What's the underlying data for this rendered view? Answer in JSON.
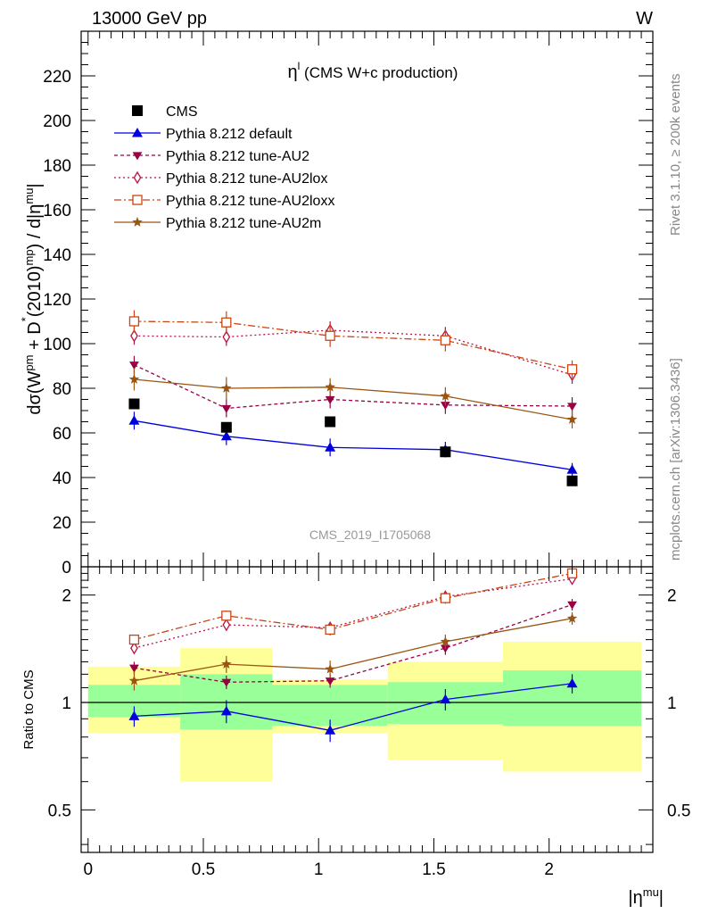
{
  "header": {
    "left": "13000 GeV pp",
    "right": "W"
  },
  "side_labels": {
    "rivet": "Rivet 3.1.10, ≥ 200k events",
    "mcplots": "mcplots.cern.ch [arXiv:1306.3436]"
  },
  "watermark": "CMS_2019_I1705068",
  "chart_data": {
    "type": "line",
    "title_main": "η",
    "title_sup": "l",
    "title_rest": " (CMS W+c production)",
    "ylabel": "dσ(W^pm + D^*(2010)^mp) / d|η^mu|",
    "ratio_ylabel": "Ratio to CMS",
    "xlabel": "|η^mu|",
    "xlim": [
      -0.03,
      2.45
    ],
    "ylim": [
      0,
      240
    ],
    "ratio_ylim": [
      0.38,
      2.4
    ],
    "ratio_scale": "log",
    "x_ticks": [
      "0",
      "0.5",
      "1",
      "1.5",
      "2"
    ],
    "y_ticks": [
      "0",
      "20",
      "40",
      "60",
      "80",
      "100",
      "120",
      "140",
      "160",
      "180",
      "200",
      "220"
    ],
    "ratio_ticks": [
      "0.5",
      "1",
      "2"
    ],
    "legend_position": "top-left",
    "data": {
      "name": "CMS",
      "x": [
        0.2,
        0.6,
        1.05,
        1.55,
        2.1
      ],
      "y": [
        73,
        62.5,
        65,
        51.5,
        38.5
      ],
      "bins": [
        [
          0,
          0.4
        ],
        [
          0.4,
          0.8
        ],
        [
          0.8,
          1.3
        ],
        [
          1.3,
          1.8
        ],
        [
          1.8,
          2.4
        ]
      ],
      "band_inner": [
        [
          0.91,
          1.12
        ],
        [
          0.84,
          1.2
        ],
        [
          0.86,
          1.12
        ],
        [
          0.87,
          1.14
        ],
        [
          0.86,
          1.23
        ]
      ],
      "band_outer": [
        [
          0.82,
          1.26
        ],
        [
          0.6,
          1.42
        ],
        [
          0.82,
          1.16
        ],
        [
          0.69,
          1.3
        ],
        [
          0.64,
          1.48
        ]
      ]
    },
    "series": [
      {
        "name": "Pythia 8.212 default",
        "color": "#0000dd",
        "marker": "triangle-up",
        "dash": "solid",
        "y": [
          65.5,
          58.5,
          53.5,
          52.5,
          43.5
        ],
        "err": [
          4,
          4,
          4,
          3.5,
          3
        ],
        "ratio": [
          0.915,
          0.945,
          0.835,
          1.02,
          1.13
        ],
        "ratio_err": [
          0.06,
          0.07,
          0.06,
          0.07,
          0.07
        ]
      },
      {
        "name": "Pythia 8.212 tune-AU2",
        "color": "#990044",
        "marker": "triangle-down",
        "dash": "4,3",
        "y": [
          90.5,
          71,
          75,
          72.5,
          72
        ],
        "err": [
          4,
          4,
          4,
          4,
          4
        ],
        "ratio": [
          1.25,
          1.14,
          1.15,
          1.42,
          1.88
        ],
        "ratio_err": [
          0.05,
          0.05,
          0.05,
          0.06,
          0.07
        ]
      },
      {
        "name": "Pythia 8.212 tune-AU2lox",
        "color": "#bb1144",
        "marker": "diamond-open",
        "dash": "2,3",
        "y": [
          103.5,
          103,
          106,
          103.5,
          86
        ],
        "err": [
          4,
          4,
          4,
          4,
          4
        ],
        "ratio": [
          1.42,
          1.65,
          1.62,
          1.98,
          2.22
        ],
        "ratio_err": [
          0.05,
          0.06,
          0.06,
          0.07,
          0.07
        ]
      },
      {
        "name": "Pythia 8.212 tune-AU2loxx",
        "color": "#cc4411",
        "marker": "square-open",
        "dash": "8,3,2,3",
        "y": [
          110,
          109.5,
          103.5,
          101.5,
          88.5
        ],
        "err": [
          5,
          5,
          5,
          5,
          4
        ],
        "ratio": [
          1.5,
          1.75,
          1.6,
          1.96,
          2.3
        ],
        "ratio_err": [
          0.05,
          0.06,
          0.06,
          0.07,
          0.07
        ]
      },
      {
        "name": "Pythia 8.212 tune-AU2m",
        "color": "#995511",
        "marker": "star",
        "dash": "solid",
        "y": [
          84,
          80,
          80.5,
          76.5,
          66
        ],
        "err": [
          5,
          5,
          4,
          4,
          4
        ],
        "ratio": [
          1.15,
          1.28,
          1.24,
          1.48,
          1.72
        ],
        "ratio_err": [
          0.07,
          0.07,
          0.07,
          0.07,
          0.07
        ]
      }
    ]
  }
}
